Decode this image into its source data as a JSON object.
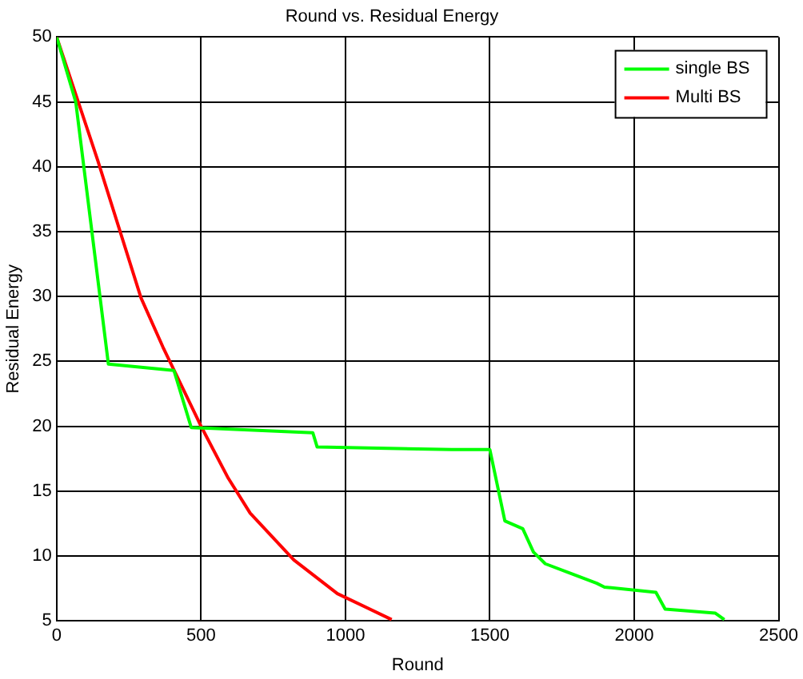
{
  "chart_data": {
    "type": "line",
    "title": "Round vs. Residual Energy",
    "xlabel": "Round",
    "ylabel": "Residual Energy",
    "xlim": [
      0,
      2500
    ],
    "xticks": [
      0,
      500,
      1000,
      1500,
      2000,
      2500
    ],
    "ylim": [
      5,
      50
    ],
    "yticks": [
      5,
      10,
      15,
      20,
      25,
      30,
      35,
      40,
      45,
      50
    ],
    "grid": true,
    "legend": "top right",
    "marker": "none",
    "line_style": "solid",
    "series": [
      {
        "name": "single BS",
        "color": "#00ff00",
        "x": [
          0,
          66,
          179,
          406,
          466,
          887,
          902,
          1368,
          1500,
          1552,
          1614,
          1651,
          1692,
          1786,
          1870,
          1897,
          2075,
          2107,
          2280,
          2312
        ],
        "values": [
          50,
          45,
          24.8,
          24.3,
          19.9,
          19.5,
          18.4,
          18.2,
          18.2,
          12.7,
          12.1,
          10.3,
          9.4,
          8.6,
          7.9,
          7.6,
          7.2,
          5.9,
          5.6,
          5.1
        ]
      },
      {
        "name": "Multi BS",
        "color": "#ff0000",
        "x": [
          0,
          142,
          292,
          368,
          500,
          594,
          670,
          821,
          972,
          1160
        ],
        "values": [
          50,
          40.5,
          29.9,
          26.1,
          20,
          16,
          13.3,
          9.7,
          7.1,
          5.1
        ]
      }
    ]
  }
}
